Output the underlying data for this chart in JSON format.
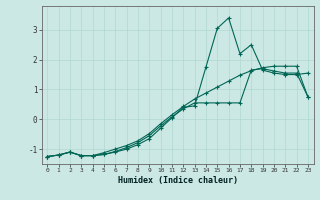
{
  "xlabel": "Humidex (Indice chaleur)",
  "background_color": "#cce8e4",
  "grid_color": "#b0d8d0",
  "line_color": "#006655",
  "xlim": [
    -0.5,
    23.5
  ],
  "ylim": [
    -1.5,
    3.8
  ],
  "yticks": [
    -1,
    0,
    1,
    2,
    3
  ],
  "xticks": [
    0,
    1,
    2,
    3,
    4,
    5,
    6,
    7,
    8,
    9,
    10,
    11,
    12,
    13,
    14,
    15,
    16,
    17,
    18,
    19,
    20,
    21,
    22,
    23
  ],
  "line1_x": [
    0,
    1,
    2,
    3,
    4,
    5,
    6,
    7,
    8,
    9,
    10,
    11,
    12,
    13,
    14,
    15,
    16,
    17,
    18,
    19,
    20,
    21,
    22,
    23
  ],
  "line1_y": [
    -1.25,
    -1.2,
    -1.1,
    -1.22,
    -1.22,
    -1.18,
    -1.1,
    -1.0,
    -0.85,
    -0.65,
    -0.3,
    0.05,
    0.4,
    0.45,
    1.75,
    3.05,
    3.4,
    2.2,
    2.5,
    1.65,
    1.55,
    1.5,
    1.5,
    1.55
  ],
  "line2_x": [
    0,
    1,
    2,
    3,
    4,
    5,
    6,
    7,
    8,
    9,
    10,
    11,
    12,
    13,
    14,
    15,
    16,
    17,
    18,
    19,
    20,
    21,
    22,
    23
  ],
  "line2_y": [
    -1.25,
    -1.2,
    -1.1,
    -1.22,
    -1.22,
    -1.18,
    -1.08,
    -0.95,
    -0.78,
    -0.55,
    -0.22,
    0.08,
    0.35,
    0.55,
    0.55,
    0.55,
    0.55,
    0.55,
    1.65,
    1.7,
    1.62,
    1.55,
    1.55,
    0.75
  ],
  "line3_x": [
    0,
    1,
    2,
    3,
    4,
    5,
    6,
    7,
    8,
    9,
    10,
    11,
    12,
    13,
    14,
    15,
    16,
    17,
    18,
    19,
    20,
    21,
    22,
    23
  ],
  "line3_y": [
    -1.25,
    -1.2,
    -1.1,
    -1.22,
    -1.22,
    -1.12,
    -1.0,
    -0.88,
    -0.72,
    -0.48,
    -0.15,
    0.15,
    0.43,
    0.68,
    0.88,
    1.08,
    1.28,
    1.48,
    1.63,
    1.73,
    1.78,
    1.78,
    1.78,
    0.75
  ]
}
